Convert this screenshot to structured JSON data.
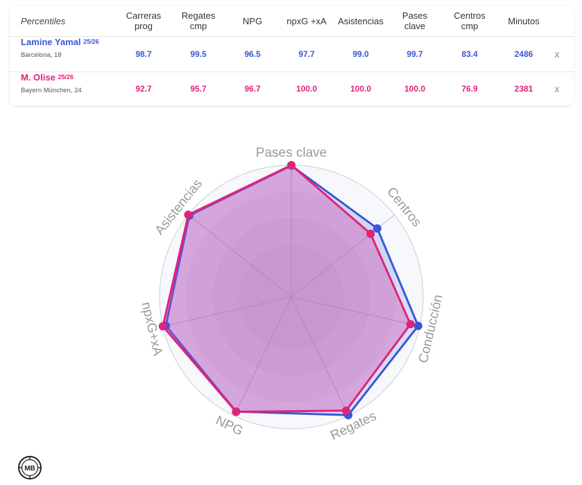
{
  "table": {
    "header": {
      "label": "Percentiles",
      "columns": [
        [
          "Carreras",
          "prog"
        ],
        [
          "Regates",
          "cmp"
        ],
        [
          "NPG",
          ""
        ],
        [
          "npxG +xA",
          ""
        ],
        [
          "Asistencias",
          ""
        ],
        [
          "Pases",
          "clave"
        ],
        [
          "Centros",
          "cmp"
        ],
        [
          "Minutos",
          ""
        ]
      ]
    },
    "players": [
      {
        "name": "Lamine Yamal",
        "season": "25/26",
        "club": "Barcelona, 18",
        "values": [
          "98.7",
          "99.5",
          "96.5",
          "97.7",
          "99.0",
          "99.7",
          "83.4",
          "2486"
        ],
        "remove_label": "x",
        "color": "#3a57d8"
      },
      {
        "name": "M. Olise",
        "season": "25/26",
        "club": "Bayern München, 24",
        "values": [
          "92.7",
          "95.7",
          "96.7",
          "100.0",
          "100.0",
          "100.0",
          "76.9",
          "2381"
        ],
        "remove_label": "x",
        "color": "#e0237a"
      }
    ]
  },
  "chart_data": {
    "type": "radar",
    "axes": [
      "Pases clave",
      "Centros",
      "Conducción",
      "Regates",
      "NPG",
      "npxG+xA",
      "Asistencias"
    ],
    "range": [
      0,
      100
    ],
    "series": [
      {
        "name": "Lamine Yamal",
        "color": "#3a57d8",
        "values": [
          99.7,
          83.4,
          98.7,
          99.5,
          96.5,
          97.7,
          99.0
        ]
      },
      {
        "name": "M. Olise",
        "color": "#e0237a",
        "values": [
          100.0,
          76.9,
          92.7,
          95.7,
          96.7,
          100.0,
          100.0
        ]
      }
    ]
  },
  "logo": {
    "text": "MB",
    "icon": "mb-logo-icon"
  }
}
